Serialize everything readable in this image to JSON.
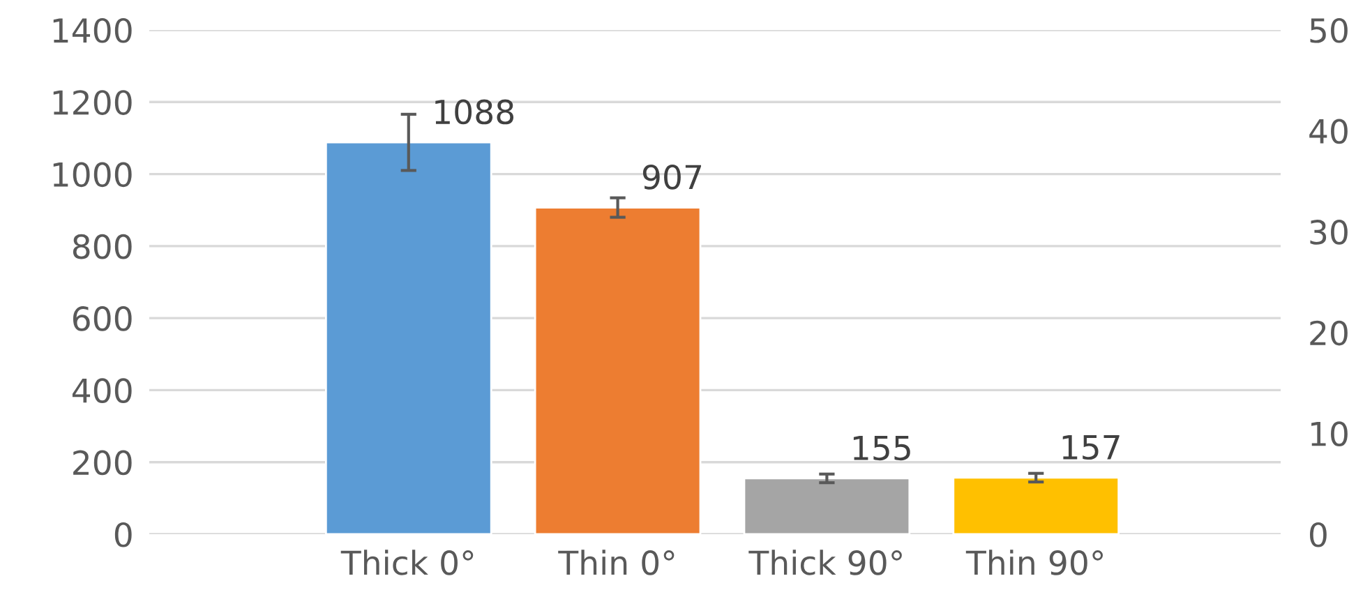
{
  "chart_data": {
    "type": "bar",
    "categories": [
      "Thick 0°",
      "Thin 0°",
      "Thick 90°",
      "Thin 90°"
    ],
    "values": [
      1088,
      907,
      155,
      157
    ],
    "colors": [
      "#5b9bd5",
      "#ed7d31",
      "#a5a5a5",
      "#ffc000"
    ],
    "errors": [
      78,
      27,
      12,
      12
    ],
    "data_labels": true,
    "ylim": [
      0,
      1400
    ],
    "yticks": [
      0,
      200,
      400,
      600,
      800,
      1000,
      1200,
      1400
    ],
    "y2lim": [
      0,
      50
    ],
    "y2ticks": [
      0,
      10,
      20,
      30,
      40,
      50
    ],
    "grid": "y",
    "legend": false
  }
}
